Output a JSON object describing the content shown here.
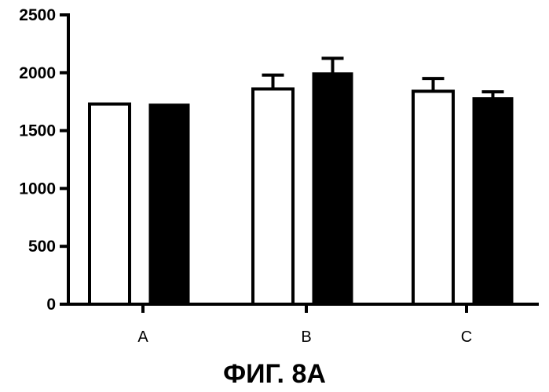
{
  "chart_data": {
    "type": "bar",
    "title": "",
    "xlabel": "",
    "ylabel": "",
    "ylim": [
      0,
      2500
    ],
    "yticks": [
      0,
      500,
      1000,
      1500,
      2000,
      2500
    ],
    "categories": [
      "A",
      "B",
      "C"
    ],
    "grid": false,
    "legend": "none",
    "series": [
      {
        "fill": "#ffffff",
        "values": [
          1730,
          1860,
          1840
        ],
        "errors": [
          0,
          120,
          110
        ]
      },
      {
        "fill": "#000000",
        "values": [
          1730,
          2000,
          1785
        ],
        "errors": [
          0,
          125,
          50
        ]
      }
    ]
  },
  "caption": "ФИГ. 8А"
}
